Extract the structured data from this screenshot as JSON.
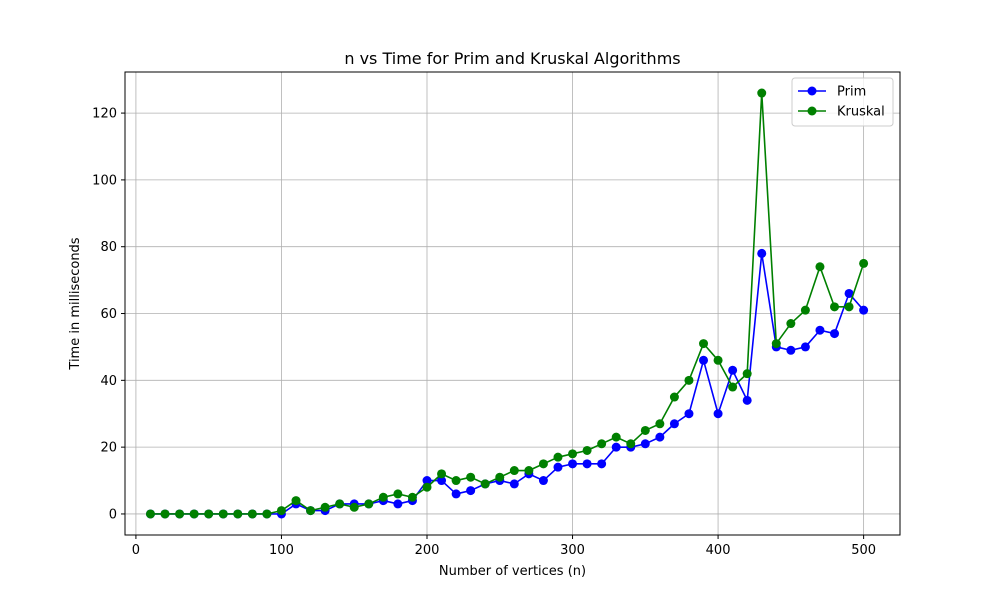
{
  "chart_data": {
    "type": "line",
    "title": "n vs Time for Prim and Kruskal Algorithms",
    "xlabel": "Number of vertices (n)",
    "ylabel": "Time in milliseconds",
    "xlim": [
      -7.5,
      525
    ],
    "ylim": [
      -6.3,
      132.3
    ],
    "xticks": [
      0,
      100,
      200,
      300,
      400,
      500
    ],
    "yticks": [
      0,
      20,
      40,
      60,
      80,
      100,
      120
    ],
    "grid": true,
    "legend_position": "top-right",
    "x": [
      10,
      20,
      30,
      40,
      50,
      60,
      70,
      80,
      90,
      100,
      110,
      120,
      130,
      140,
      150,
      160,
      170,
      180,
      190,
      200,
      210,
      220,
      230,
      240,
      250,
      260,
      270,
      280,
      290,
      300,
      310,
      320,
      330,
      340,
      350,
      360,
      370,
      380,
      390,
      400,
      410,
      420,
      430,
      440,
      450,
      460,
      470,
      480,
      490,
      500
    ],
    "series": [
      {
        "name": "Prim",
        "color": "#0000ff",
        "values": [
          0,
          0,
          0,
          0,
          0,
          0,
          0,
          0,
          0,
          0,
          3,
          1,
          1,
          3,
          3,
          3,
          4,
          3,
          4,
          10,
          10,
          6,
          7,
          9,
          10,
          9,
          12,
          10,
          14,
          15,
          15,
          15,
          20,
          20,
          21,
          23,
          27,
          30,
          46,
          30,
          43,
          34,
          78,
          50,
          49,
          50,
          55,
          54,
          66,
          61
        ]
      },
      {
        "name": "Kruskal",
        "color": "#008000",
        "values": [
          0,
          0,
          0,
          0,
          0,
          0,
          0,
          0,
          0,
          1,
          4,
          1,
          2,
          3,
          2,
          3,
          5,
          6,
          5,
          8,
          12,
          10,
          11,
          9,
          11,
          13,
          13,
          15,
          17,
          18,
          19,
          21,
          23,
          21,
          25,
          27,
          35,
          40,
          51,
          46,
          38,
          42,
          126,
          51,
          57,
          61,
          74,
          62,
          62,
          75
        ]
      }
    ]
  }
}
